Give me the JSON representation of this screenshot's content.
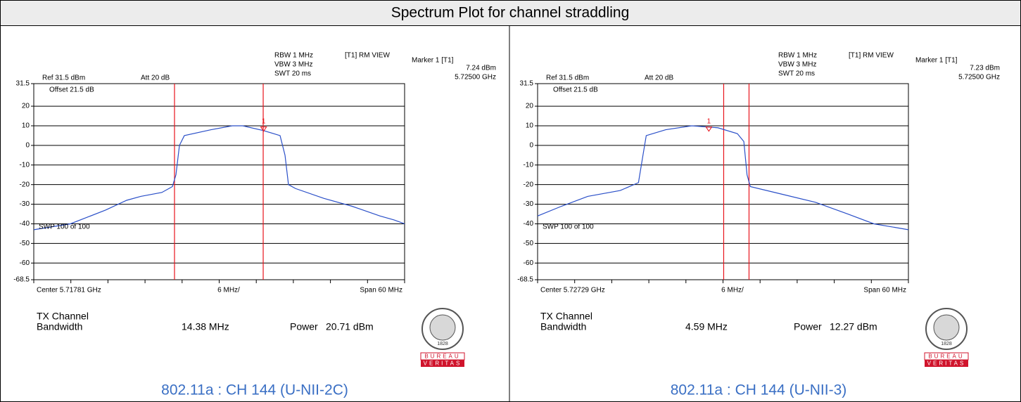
{
  "title": "Spectrum Plot for channel straddling",
  "chart_data": [
    {
      "type": "line",
      "ref": "Ref 31.5 dBm",
      "att": "Att 20 dB",
      "rbw": "RBW 1 MHz",
      "vbw": "VBW 3 MHz",
      "swt": "SWT 20 ms",
      "mode": "[T1] RM VIEW",
      "marker_title": "Marker 1 [T1]",
      "marker_name": "1",
      "marker_y": 7.24,
      "marker_y_label": "7.24 dBm",
      "marker_x": 5.725,
      "marker_x_label": "5.72500 GHz",
      "offset": "Offset 21.5 dB",
      "sweep": "SWP 100 of 100",
      "center": "Center 5.71781 GHz",
      "division": "6 MHz/",
      "span": "Span 60 MHz",
      "tx_label": "TX Channel",
      "bw_label": "Bandwidth",
      "bw": "14.38 MHz",
      "power_label": "Power",
      "power": "20.71 dBm",
      "logo_top": "BUREAU",
      "logo_bottom": "VERITAS",
      "logo_year": "1828",
      "caption": "802.11a : CH 144 (U-NII-2C)",
      "xlim": [
        5.68781,
        5.74781
      ],
      "ylim": [
        -68.5,
        31.5
      ],
      "yticks": [
        31.5,
        20,
        10,
        0,
        -10,
        -20,
        -30,
        -40,
        -50,
        -60,
        -68.5
      ],
      "color": "#2a4fc8",
      "vline_color": "#e8141c",
      "grid": true,
      "vlines": [
        5.71058,
        5.72493
      ],
      "x": [
        5.68781,
        5.69373,
        5.69942,
        5.70284,
        5.70512,
        5.70853,
        5.71024,
        5.71081,
        5.71138,
        5.71217,
        5.7165,
        5.71992,
        5.72162,
        5.72504,
        5.72766,
        5.72846,
        5.72902,
        5.73016,
        5.73472,
        5.73927,
        5.74383,
        5.7461,
        5.74781
      ],
      "values": [
        -43,
        -40,
        -33,
        -28,
        -26,
        -24,
        -21,
        -15,
        0,
        5,
        8,
        10,
        10,
        7.5,
        5,
        -5,
        -20,
        -22,
        -27,
        -31,
        -36,
        -38,
        -40
      ]
    },
    {
      "type": "line",
      "ref": "Ref 31.5 dBm",
      "att": "Att 20 dB",
      "rbw": "RBW 1 MHz",
      "vbw": "VBW 3 MHz",
      "swt": "SWT 20 ms",
      "mode": "[T1] RM VIEW",
      "marker_title": "Marker 1 [T1]",
      "marker_name": "1",
      "marker_y": 7.23,
      "marker_y_label": "7.23 dBm",
      "marker_x": 5.725,
      "marker_x_label": "5.72500 GHz",
      "offset": "Offset 21.5 dB",
      "sweep": "SWP 100 of 100",
      "center": "Center 5.72729 GHz",
      "division": "6 MHz/",
      "span": "Span 60 MHz",
      "tx_label": "TX Channel",
      "bw_label": "Bandwidth",
      "bw": "4.59 MHz",
      "power_label": "Power",
      "power": "12.27 dBm",
      "logo_top": "BUREAU",
      "logo_bottom": "VERITAS",
      "logo_year": "1828",
      "caption": "802.11a : CH 144 (U-NII-3)",
      "xlim": [
        5.69729,
        5.75729
      ],
      "ylim": [
        -68.5,
        31.5
      ],
      "yticks": [
        31.5,
        20,
        10,
        0,
        -10,
        -20,
        -30,
        -40,
        -50,
        -60,
        -68.5
      ],
      "color": "#2a4fc8",
      "vline_color": "#e8141c",
      "grid": true,
      "vlines": [
        5.7274,
        5.7315
      ],
      "x": [
        5.69729,
        5.70118,
        5.7054,
        5.71066,
        5.71361,
        5.71434,
        5.71487,
        5.71803,
        5.72224,
        5.72645,
        5.72961,
        5.73066,
        5.73118,
        5.73171,
        5.73697,
        5.74224,
        5.7475,
        5.75171,
        5.75729
      ],
      "values": [
        -36,
        -31,
        -26,
        -23,
        -19,
        -5,
        5,
        8,
        10,
        9,
        6,
        2,
        -15,
        -21,
        -25,
        -29,
        -35,
        -40,
        -43
      ]
    }
  ]
}
